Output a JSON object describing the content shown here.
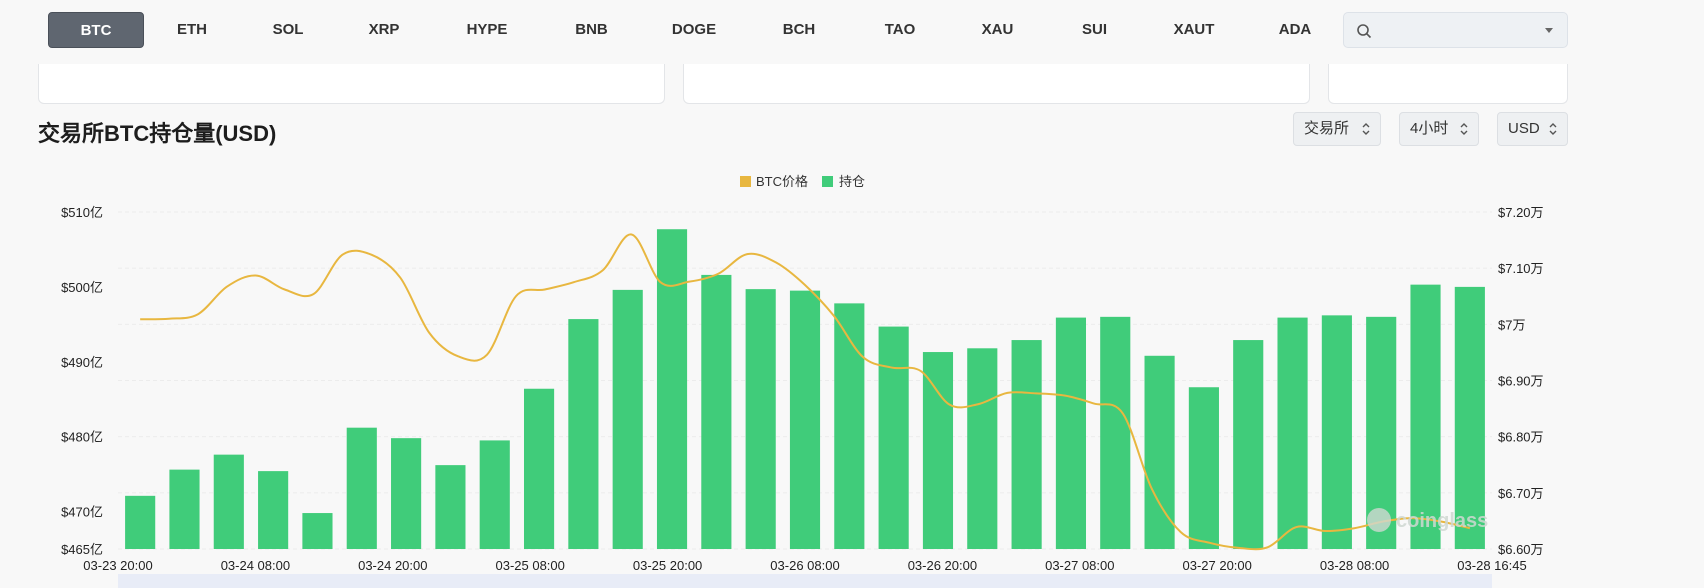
{
  "tabs": [
    {
      "label": "BTC",
      "active": true
    },
    {
      "label": "ETH"
    },
    {
      "label": "SOL"
    },
    {
      "label": "XRP"
    },
    {
      "label": "HYPE"
    },
    {
      "label": "BNB"
    },
    {
      "label": "DOGE"
    },
    {
      "label": "BCH"
    },
    {
      "label": "TAO"
    },
    {
      "label": "XAU"
    },
    {
      "label": "SUI"
    },
    {
      "label": "XAUT"
    },
    {
      "label": "ADA"
    }
  ],
  "search": {
    "placeholder": "",
    "icon": "search-icon"
  },
  "section": {
    "title": "交易所BTC持仓量(USD)"
  },
  "selectors": {
    "exchange": "交易所",
    "interval": "4小时",
    "currency": "USD"
  },
  "watermark": "coinglass",
  "chart_data": {
    "type": "bar",
    "legend": [
      {
        "name": "BTC价格",
        "color": "#e8b740"
      },
      {
        "name": "持仓",
        "color": "#40cc7a"
      }
    ],
    "legend_position": "top",
    "x_labels": [
      "03-23 20:00",
      "03-24 08:00",
      "03-24 20:00",
      "03-25 08:00",
      "03-25 20:00",
      "03-26 08:00",
      "03-26 20:00",
      "03-27 08:00",
      "03-27 20:00",
      "03-28 08:00",
      "03-28 16:45"
    ],
    "y_left_ticks": [
      "$465亿",
      "$470亿",
      "$480亿",
      "$490亿",
      "$500亿",
      "$510亿"
    ],
    "y_left_tick_values": [
      465,
      470,
      480,
      490,
      500,
      510
    ],
    "y_left_range": [
      465,
      510
    ],
    "y_left_unit": "亿 USD",
    "y_right_ticks": [
      "$6.60万",
      "$6.70万",
      "$6.80万",
      "$6.90万",
      "$7万",
      "$7.10万",
      "$7.20万"
    ],
    "y_right_tick_values": [
      6.6,
      6.7,
      6.8,
      6.9,
      7.0,
      7.1,
      7.2
    ],
    "y_right_range": [
      6.6,
      7.2
    ],
    "y_right_unit": "万 USD",
    "grid": true,
    "series": [
      {
        "name": "持仓",
        "type": "bar",
        "axis": "left",
        "values": [
          472.1,
          475.6,
          477.6,
          475.4,
          469.8,
          481.2,
          479.8,
          476.2,
          479.5,
          486.4,
          495.7,
          499.6,
          507.7,
          501.6,
          499.7,
          499.5,
          497.8,
          494.7,
          491.3,
          491.8,
          492.9,
          495.9,
          496.0,
          490.8,
          486.6,
          492.9,
          495.9,
          496.2,
          496.0,
          500.3,
          500.0
        ]
      },
      {
        "name": "BTC价格",
        "type": "line",
        "axis": "right",
        "values": [
          7.009,
          7.01,
          7.018,
          7.067,
          7.087,
          7.062,
          7.054,
          7.124,
          7.124,
          7.083,
          6.985,
          6.943,
          6.946,
          7.05,
          7.062,
          7.075,
          7.096,
          7.16,
          7.075,
          7.076,
          7.09,
          7.125,
          7.11,
          7.07,
          7.015,
          6.942,
          6.923,
          6.917,
          6.857,
          6.858,
          6.878,
          6.877,
          6.873,
          6.859,
          6.841,
          6.707,
          6.63,
          6.611,
          6.602,
          6.603,
          6.639,
          6.632,
          6.637,
          6.649,
          6.655,
          6.649,
          6.637
        ]
      }
    ]
  }
}
